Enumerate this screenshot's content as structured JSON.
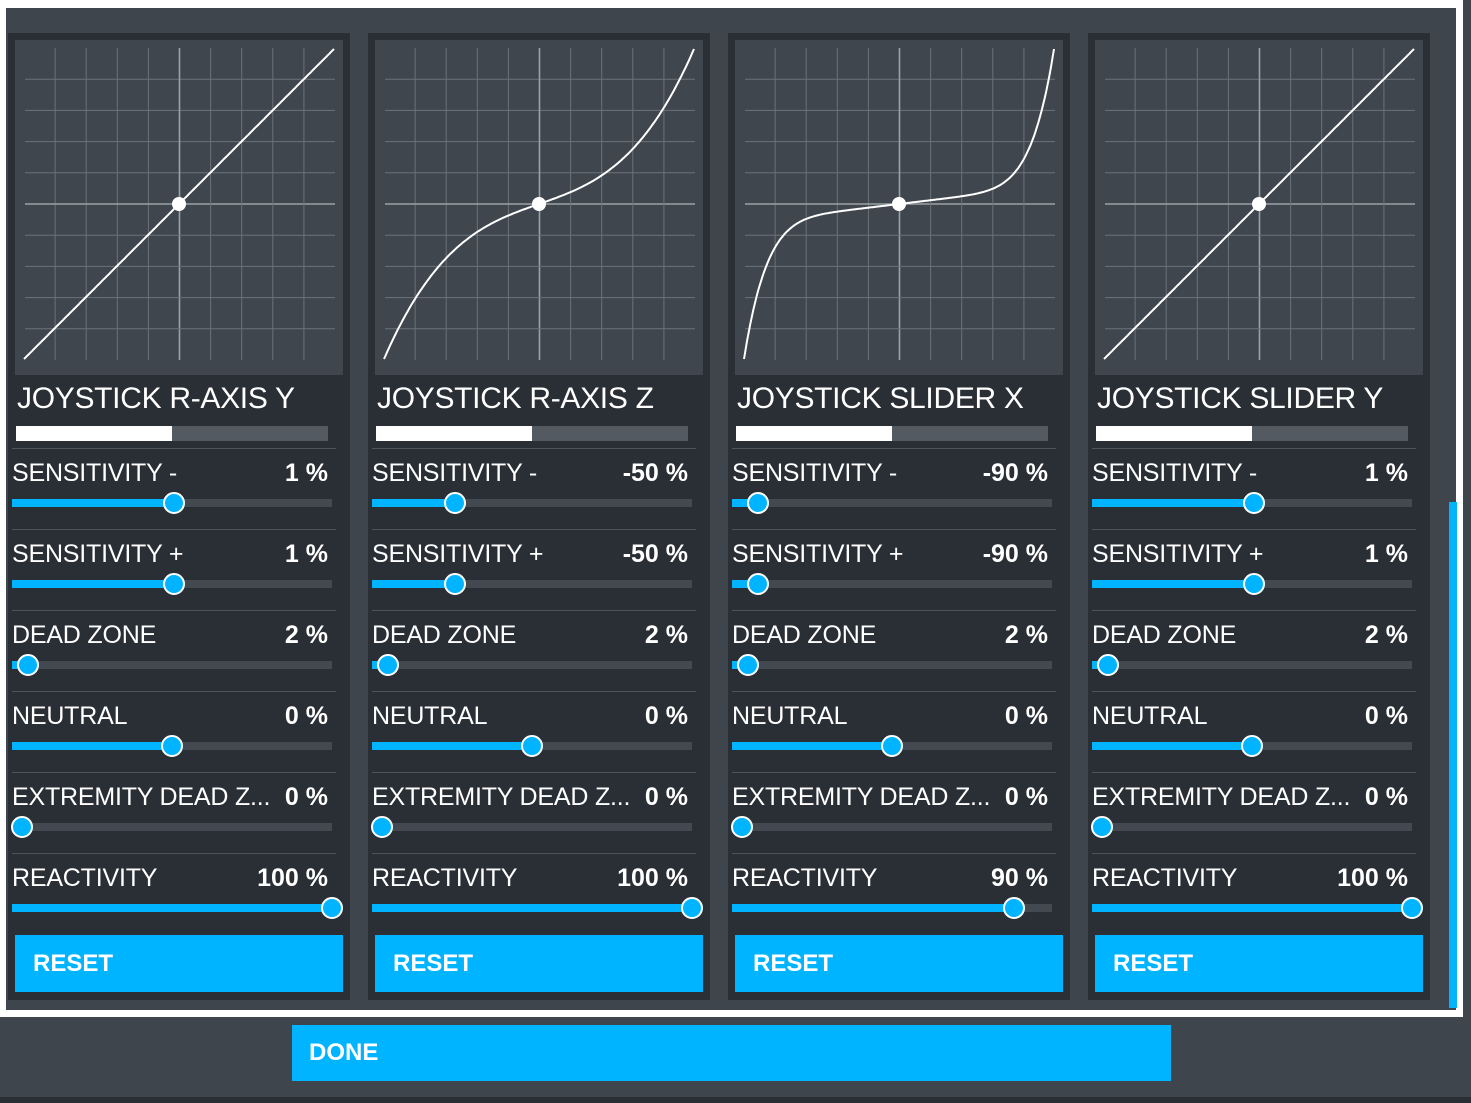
{
  "panels": [
    {
      "title": "JOYSTICK R-AXIS Y",
      "position_fill_pct": 50,
      "curve": "linear",
      "rows": [
        {
          "label": "SENSITIVITY -",
          "value": "1 %",
          "slider_pct": 50.5
        },
        {
          "label": "SENSITIVITY +",
          "value": "1 %",
          "slider_pct": 50.5
        },
        {
          "label": "DEAD ZONE",
          "value": "2 %",
          "slider_pct": 5
        },
        {
          "label": "NEUTRAL",
          "value": "0 %",
          "slider_pct": 50
        },
        {
          "label": "EXTREMITY DEAD Z...",
          "value": "0 %",
          "slider_pct": 3
        },
        {
          "label": "REACTIVITY",
          "value": "100 %",
          "slider_pct": 100
        }
      ],
      "reset_label": "RESET"
    },
    {
      "title": "JOYSTICK R-AXIS Z",
      "position_fill_pct": 50,
      "curve": "cubic-moderate",
      "rows": [
        {
          "label": "SENSITIVITY -",
          "value": "-50 %",
          "slider_pct": 26
        },
        {
          "label": "SENSITIVITY +",
          "value": "-50 %",
          "slider_pct": 26
        },
        {
          "label": "DEAD ZONE",
          "value": "2 %",
          "slider_pct": 5
        },
        {
          "label": "NEUTRAL",
          "value": "0 %",
          "slider_pct": 50
        },
        {
          "label": "EXTREMITY DEAD Z...",
          "value": "0 %",
          "slider_pct": 3
        },
        {
          "label": "REACTIVITY",
          "value": "100 %",
          "slider_pct": 100
        }
      ],
      "reset_label": "RESET"
    },
    {
      "title": "JOYSTICK SLIDER X",
      "position_fill_pct": 50,
      "curve": "cubic-strong",
      "rows": [
        {
          "label": "SENSITIVITY -",
          "value": "-90 %",
          "slider_pct": 8
        },
        {
          "label": "SENSITIVITY +",
          "value": "-90 %",
          "slider_pct": 8
        },
        {
          "label": "DEAD ZONE",
          "value": "2 %",
          "slider_pct": 5
        },
        {
          "label": "NEUTRAL",
          "value": "0 %",
          "slider_pct": 50
        },
        {
          "label": "EXTREMITY DEAD Z...",
          "value": "0 %",
          "slider_pct": 3
        },
        {
          "label": "REACTIVITY",
          "value": "90 %",
          "slider_pct": 88
        }
      ],
      "reset_label": "RESET"
    },
    {
      "title": "JOYSTICK SLIDER Y",
      "position_fill_pct": 50,
      "curve": "linear",
      "rows": [
        {
          "label": "SENSITIVITY -",
          "value": "1 %",
          "slider_pct": 50.5
        },
        {
          "label": "SENSITIVITY +",
          "value": "1 %",
          "slider_pct": 50.5
        },
        {
          "label": "DEAD ZONE",
          "value": "2 %",
          "slider_pct": 5
        },
        {
          "label": "NEUTRAL",
          "value": "0 %",
          "slider_pct": 50
        },
        {
          "label": "EXTREMITY DEAD Z...",
          "value": "0 %",
          "slider_pct": 3
        },
        {
          "label": "REACTIVITY",
          "value": "100 %",
          "slider_pct": 100
        }
      ],
      "reset_label": "RESET"
    }
  ],
  "footer": {
    "done_label": "DONE"
  },
  "colors": {
    "accent": "#00b4ff",
    "panel_bg": "#2a2e35",
    "frame_bg": "#3e454d",
    "graph_bg": "#3f464e"
  }
}
